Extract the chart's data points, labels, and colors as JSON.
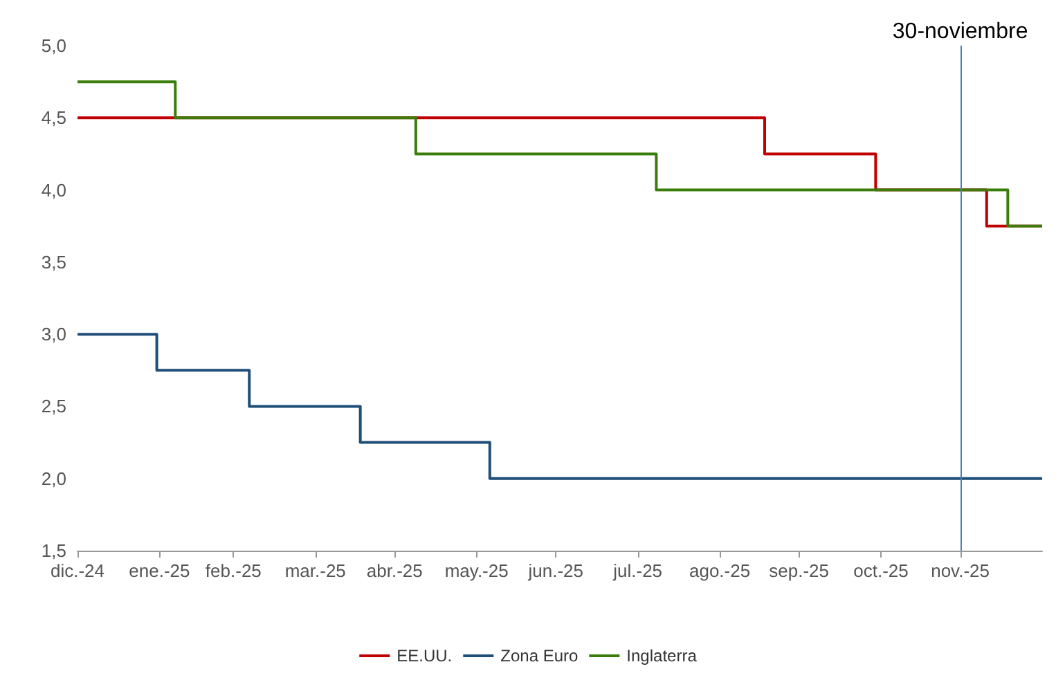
{
  "chart_data": {
    "type": "step",
    "series": [
      {
        "name": "EE.UU.",
        "color": "#c00000",
        "x": [
          "2024-12-31",
          "2025-09-17",
          "2025-10-29",
          "2025-12-10",
          "2025-12-31"
        ],
        "values": [
          4.5,
          4.25,
          4.0,
          3.75,
          3.75
        ]
      },
      {
        "name": "Zona Euro",
        "color": "#1f4e79",
        "x": [
          "2024-12-31",
          "2025-01-30",
          "2025-03-06",
          "2025-04-17",
          "2025-06-05",
          "2025-12-31"
        ],
        "values": [
          3.0,
          2.75,
          2.5,
          2.25,
          2.0,
          2.0
        ]
      },
      {
        "name": "Inglaterra",
        "color": "#3a7d0a",
        "x": [
          "2024-12-31",
          "2025-02-06",
          "2025-05-08",
          "2025-08-07",
          "2025-12-18",
          "2025-12-31"
        ],
        "values": [
          4.75,
          4.5,
          4.25,
          4.0,
          3.75,
          3.75
        ]
      }
    ],
    "xlim": [
      "2024-12-31",
      "2025-12-31"
    ],
    "xticks": [
      {
        "value": "2024-12-31",
        "label": "dic.-24"
      },
      {
        "value": "2025-01-31",
        "label": "ene.-25"
      },
      {
        "value": "2025-02-28",
        "label": "feb.-25"
      },
      {
        "value": "2025-03-31",
        "label": "mar.-25"
      },
      {
        "value": "2025-04-30",
        "label": "abr.-25"
      },
      {
        "value": "2025-05-31",
        "label": "may.-25"
      },
      {
        "value": "2025-06-30",
        "label": "jun.-25"
      },
      {
        "value": "2025-07-31",
        "label": "jul.-25"
      },
      {
        "value": "2025-08-31",
        "label": "ago.-25"
      },
      {
        "value": "2025-09-30",
        "label": "sep.-25"
      },
      {
        "value": "2025-10-31",
        "label": "oct.-25"
      },
      {
        "value": "2025-11-30",
        "label": "nov.-25"
      }
    ],
    "ylim": [
      1.5,
      5.0
    ],
    "yticks": [
      {
        "value": 1.5,
        "label": "1,5"
      },
      {
        "value": 2.0,
        "label": "2,0"
      },
      {
        "value": 2.5,
        "label": "2,5"
      },
      {
        "value": 3.0,
        "label": "3,0"
      },
      {
        "value": 3.5,
        "label": "3,5"
      },
      {
        "value": 4.0,
        "label": "4,0"
      },
      {
        "value": 4.5,
        "label": "4,5"
      },
      {
        "value": 5.0,
        "label": "5,0"
      }
    ],
    "ref_lines": [
      {
        "axis": "x",
        "value": "2025-11-30",
        "label": "30-noviembre",
        "color": "#4a7ebb"
      }
    ],
    "grid": false,
    "legend": "bottom",
    "marker": "none",
    "line_style": "solid"
  }
}
